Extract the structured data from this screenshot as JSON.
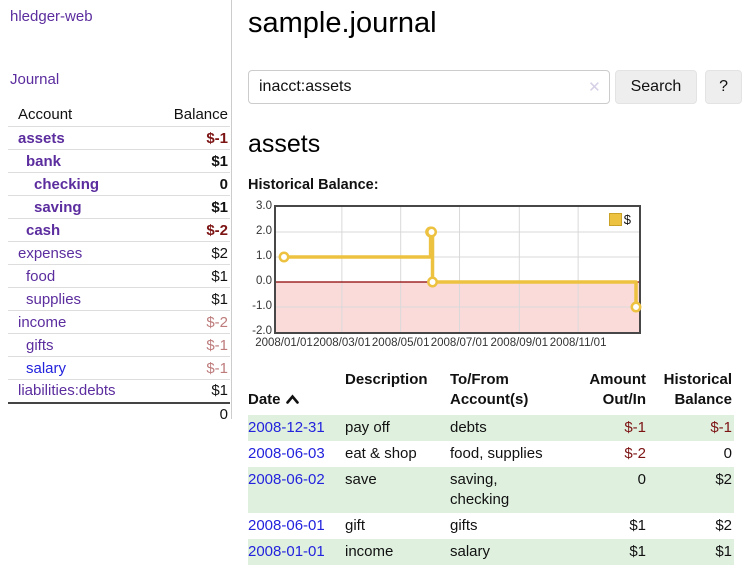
{
  "sidebar": {
    "app_title": "hledger-web",
    "journal_label": "Journal",
    "accounts_header": {
      "account": "Account",
      "balance": "Balance"
    },
    "accounts": [
      {
        "name": "assets",
        "level": 0,
        "bold": true,
        "balance": "$-1",
        "balance_style": "neg-strong"
      },
      {
        "name": "bank",
        "level": 1,
        "bold": true,
        "balance": "$1",
        "balance_style": "normal"
      },
      {
        "name": "checking",
        "level": 2,
        "bold": true,
        "balance": "0",
        "balance_style": "normal"
      },
      {
        "name": "saving",
        "level": 2,
        "bold": true,
        "balance": "$1",
        "balance_style": "normal"
      },
      {
        "name": "cash",
        "level": 1,
        "bold": true,
        "balance": "$-2",
        "balance_style": "neg-strong"
      },
      {
        "name": "expenses",
        "level": 0,
        "bold": false,
        "balance": "$2",
        "balance_style": "normal"
      },
      {
        "name": "food",
        "level": 1,
        "bold": false,
        "balance": "$1",
        "balance_style": "normal"
      },
      {
        "name": "supplies",
        "level": 1,
        "bold": false,
        "balance": "$1",
        "balance_style": "normal"
      },
      {
        "name": "income",
        "level": 0,
        "bold": false,
        "balance": "$-2",
        "balance_style": "neg-soft"
      },
      {
        "name": "gifts",
        "level": 1,
        "bold": false,
        "balance": "$-1",
        "balance_style": "neg-soft"
      },
      {
        "name": "salary",
        "level": 1,
        "bold": false,
        "balance": "$-1",
        "balance_style": "neg-soft",
        "link_color": "blue"
      },
      {
        "name": "liabilities:debts",
        "level": 0,
        "bold": false,
        "balance": "$1",
        "balance_style": "normal"
      }
    ],
    "total": "0"
  },
  "main": {
    "title": "sample.journal",
    "search": {
      "value": "inacct:assets",
      "clear_icon": "✕",
      "search_button": "Search",
      "help_button": "?"
    },
    "section_title": "assets",
    "chart_label": "Historical Balance:",
    "table": {
      "headers": {
        "date": "Date",
        "description": "Description",
        "tofrom": "To/From\nAccount(s)",
        "amount": "Amount\nOut/In",
        "balance": "Historical\nBalance"
      },
      "rows": [
        {
          "date": "2008-12-31",
          "description": "pay off",
          "accounts": "debts",
          "amount": "$-1",
          "amount_neg": true,
          "balance": "$-1",
          "balance_neg": true,
          "shaded": true
        },
        {
          "date": "2008-06-03",
          "description": "eat & shop",
          "accounts": "food, supplies",
          "amount": "$-2",
          "amount_neg": true,
          "balance": "0",
          "balance_neg": false,
          "shaded": false
        },
        {
          "date": "2008-06-02",
          "description": "save",
          "accounts": "saving,\nchecking",
          "amount": "0",
          "amount_neg": false,
          "balance": "$2",
          "balance_neg": false,
          "shaded": true
        },
        {
          "date": "2008-06-01",
          "description": "gift",
          "accounts": "gifts",
          "amount": "$1",
          "amount_neg": false,
          "balance": "$2",
          "balance_neg": false,
          "shaded": false
        },
        {
          "date": "2008-01-01",
          "description": "income",
          "accounts": "salary",
          "amount": "$1",
          "amount_neg": false,
          "balance": "$1",
          "balance_neg": false,
          "shaded": true
        }
      ]
    }
  },
  "chart_data": {
    "type": "line",
    "step": true,
    "title": "Historical Balance",
    "legend": "$",
    "legend_position": "top-right",
    "grid": true,
    "ylim": [
      -2,
      3
    ],
    "y_ticks": [
      "3.0",
      "2.0",
      "1.0",
      "0.0",
      "-1.0",
      "-2.0"
    ],
    "x_ticks": [
      {
        "day": 0,
        "label": "2008/01/01"
      },
      {
        "day": 60,
        "label": "2008/03/01"
      },
      {
        "day": 121,
        "label": "2008/05/01"
      },
      {
        "day": 182,
        "label": "2008/07/01"
      },
      {
        "day": 244,
        "label": "2008/09/01"
      },
      {
        "day": 305,
        "label": "2008/11/01"
      }
    ],
    "points": [
      {
        "date": "2008-01-01",
        "day": 0,
        "value": 1
      },
      {
        "date": "2008-06-01",
        "day": 152,
        "value": 2
      },
      {
        "date": "2008-06-02",
        "day": 153,
        "value": 2
      },
      {
        "date": "2008-06-03",
        "day": 154,
        "value": 0
      },
      {
        "date": "2008-12-31",
        "day": 365,
        "value": -1
      }
    ],
    "colors": {
      "line": "#edc240",
      "marker_fill": "#ffffff",
      "negative_region": "#fbdada",
      "zero_line": "#8b0000",
      "gridline": "#d9d9d9"
    }
  }
}
